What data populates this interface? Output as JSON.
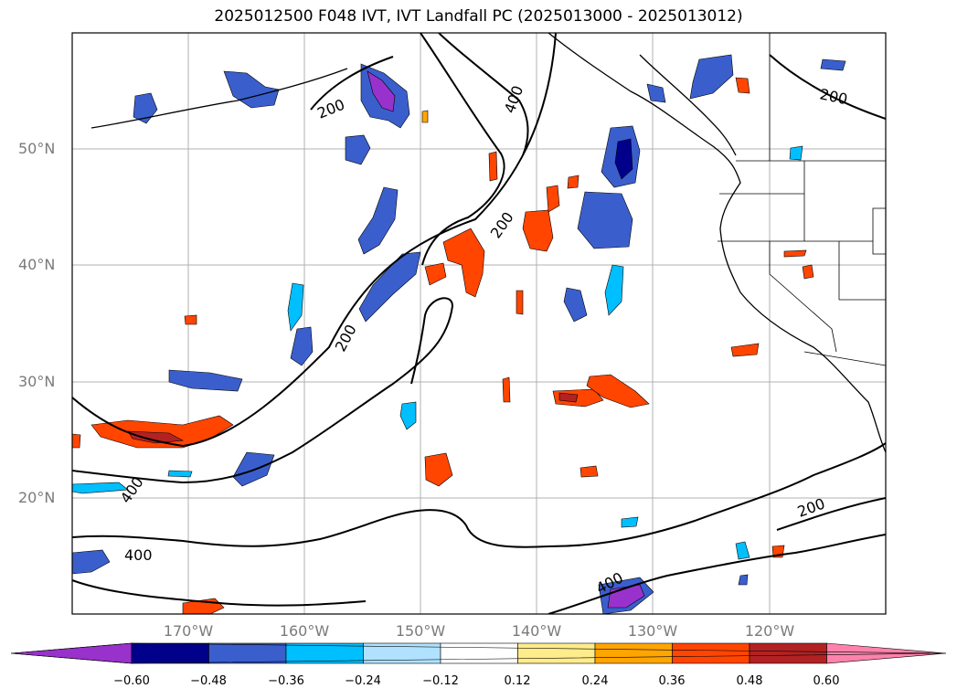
{
  "title": "2025012500 F048 IVT, IVT Landfall PC (2025013000 - 2025013012)",
  "axes": {
    "lat_labels": [
      "50°N",
      "40°N",
      "30°N",
      "20°N"
    ],
    "lon_labels": [
      "170°W",
      "160°W",
      "150°W",
      "140°W",
      "130°W",
      "120°W"
    ],
    "lat_range": [
      10,
      60
    ],
    "lon_range": [
      -180,
      -110
    ],
    "grid": true
  },
  "contours": {
    "labels": [
      "200",
      "400",
      "200",
      "200",
      "400",
      "200",
      "400",
      "400",
      "200"
    ]
  },
  "colorbar": {
    "ticks": [
      "−0.60",
      "−0.48",
      "−0.36",
      "−0.24",
      "−0.12",
      "0.12",
      "0.24",
      "0.36",
      "0.48",
      "0.60"
    ],
    "colors": [
      "#9932CC",
      "#00008B",
      "#3A5FCD",
      "#00BFFF",
      "#B0E2FF",
      "#FFFFFF",
      "#FFEC8B",
      "#FFA500",
      "#FF4500",
      "#B22222",
      "#FF82AB"
    ]
  }
}
